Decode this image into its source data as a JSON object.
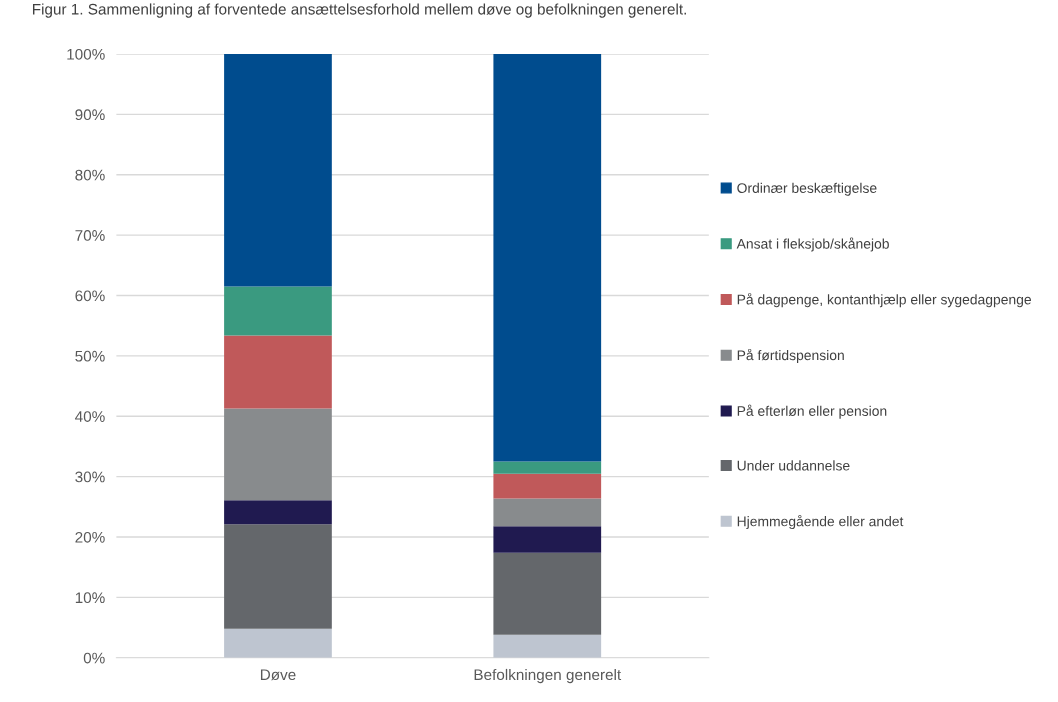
{
  "chart_data": {
    "type": "bar",
    "stacked": true,
    "title": "Figur 1. Sammenligning af forventede ansættelsesforhold mellem døve og befolkningen generelt.",
    "categories": [
      "Døve",
      "Befolkningen generelt"
    ],
    "series": [
      {
        "name": "Hjemmegående eller andet",
        "color": "#bec5d0",
        "values": [
          4.8,
          3.8
        ]
      },
      {
        "name": "Under uddannelse",
        "color": "#64676b",
        "values": [
          17.3,
          13.6
        ]
      },
      {
        "name": "På efterløn eller pension",
        "color": "#201a50",
        "values": [
          4.0,
          4.4
        ]
      },
      {
        "name": "På førtidspension",
        "color": "#888b8d",
        "values": [
          15.2,
          4.6
        ]
      },
      {
        "name": "På dagpenge, kontanthjælp eller sygedagpenge",
        "color": "#c0595a",
        "values": [
          12.1,
          4.1
        ]
      },
      {
        "name": "Ansat i fleksjob/skånejob",
        "color": "#3a9a80",
        "values": [
          8.1,
          2.0
        ]
      },
      {
        "name": "Ordinær beskæftigelse",
        "color": "#004c8e",
        "values": [
          38.5,
          67.5
        ]
      }
    ],
    "ylim": [
      0,
      100
    ],
    "yticks": [
      {
        "value": 0,
        "label": "0%"
      },
      {
        "value": 10,
        "label": "10%"
      },
      {
        "value": 20,
        "label": "20%"
      },
      {
        "value": 30,
        "label": "30%"
      },
      {
        "value": 40,
        "label": "40%"
      },
      {
        "value": 50,
        "label": "50%"
      },
      {
        "value": 60,
        "label": "60%"
      },
      {
        "value": 70,
        "label": "70%"
      },
      {
        "value": 80,
        "label": "80%"
      },
      {
        "value": 90,
        "label": "90%"
      },
      {
        "value": 100,
        "label": "100%"
      }
    ],
    "grid": "y",
    "legend": "right"
  }
}
